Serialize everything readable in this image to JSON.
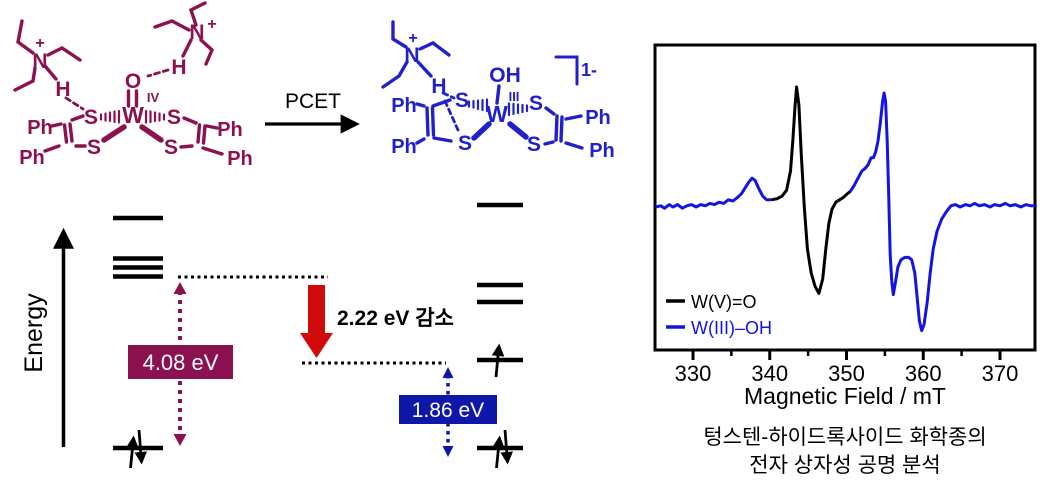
{
  "scheme": {
    "pcet_label": "PCET",
    "reactant": {
      "color": "#8C1150",
      "labels": {
        "n1": "N",
        "plus1": "+",
        "h1": "H",
        "n2": "N",
        "plus2": "+",
        "h2": "H",
        "o": "O",
        "w": "W",
        "ox_state": "IV",
        "s_tl": "S",
        "s_bl": "S",
        "s_tr": "S",
        "s_br": "S",
        "ph_lt": "Ph",
        "ph_lb": "Ph",
        "ph_rt": "Ph",
        "ph_rb": "Ph"
      }
    },
    "product": {
      "color": "#2121CC",
      "labels": {
        "n": "N",
        "plus": "+",
        "h": "H",
        "oh": "OH",
        "w": "W",
        "ox_state": "III",
        "s_lt": "S",
        "s_lb": "S",
        "s_rt": "S",
        "s_rb": "S",
        "ph_lt": "Ph",
        "ph_lb": "Ph",
        "ph_rt": "Ph",
        "ph_rb": "Ph",
        "charge": "1-"
      }
    }
  },
  "energy_diagram": {
    "axis_label": "Energy",
    "gap_left_label": "4.08 eV",
    "gap_right_label": "1.86 eV",
    "decrease_label": "2.22 eV 감소",
    "gap_left_color": "#8C1150",
    "gap_right_color": "#0F17A8",
    "arrow_color": "#D00A0A"
  },
  "chart_data": {
    "type": "line",
    "xlabel": "Magnetic Field / mT",
    "ylabel": "",
    "x_range": [
      325,
      375
    ],
    "x_ticks_major": [
      330,
      340,
      350,
      360,
      370
    ],
    "x_ticks_minor": [
      335,
      345,
      355,
      365
    ],
    "grid": false,
    "legend_position": "lower-left",
    "series": [
      {
        "name": "W(V)=O",
        "color": "#000000",
        "segments": [
          [
            [
              340.2,
              0.06
            ],
            [
              341.0,
              0.07
            ],
            [
              341.6,
              0.09
            ],
            [
              342.2,
              0.14
            ],
            [
              342.7,
              0.3
            ],
            [
              343.0,
              0.55
            ],
            [
              343.3,
              0.85
            ],
            [
              343.5,
              1.0
            ],
            [
              343.8,
              0.85
            ],
            [
              344.1,
              0.45
            ],
            [
              344.5,
              0.0
            ],
            [
              344.9,
              -0.35
            ],
            [
              345.4,
              -0.55
            ],
            [
              345.9,
              -0.66
            ],
            [
              346.4,
              -0.72
            ],
            [
              346.9,
              -0.6
            ],
            [
              347.3,
              -0.35
            ],
            [
              347.7,
              -0.14
            ],
            [
              348.1,
              -0.02
            ],
            [
              348.6,
              0.04
            ],
            [
              349.1,
              0.06
            ],
            [
              349.6,
              0.08
            ],
            [
              350.1,
              0.11
            ],
            [
              350.5,
              0.13
            ]
          ]
        ]
      },
      {
        "name": "W(III)–OH",
        "color": "#1414E0",
        "segments": [
          [
            [
              325.1,
              0.0
            ],
            [
              325.8,
              0.01
            ],
            [
              326.3,
              -0.01
            ],
            [
              326.9,
              0.02
            ],
            [
              327.4,
              0.0
            ],
            [
              328.0,
              0.02
            ],
            [
              328.6,
              -0.01
            ],
            [
              329.2,
              0.01
            ],
            [
              329.8,
              0.02
            ],
            [
              330.4,
              0.0
            ],
            [
              331.0,
              0.02
            ],
            [
              331.6,
              0.01
            ],
            [
              332.2,
              0.03
            ],
            [
              332.8,
              0.02
            ],
            [
              333.4,
              0.04
            ],
            [
              334.0,
              0.03
            ],
            [
              334.6,
              0.06
            ],
            [
              335.2,
              0.05
            ],
            [
              335.8,
              0.08
            ],
            [
              336.3,
              0.11
            ],
            [
              336.8,
              0.16
            ],
            [
              337.3,
              0.21
            ],
            [
              337.7,
              0.24
            ],
            [
              338.1,
              0.22
            ],
            [
              338.6,
              0.15
            ],
            [
              339.1,
              0.09
            ],
            [
              339.6,
              0.06
            ],
            [
              340.2,
              0.06
            ]
          ],
          [
            [
              350.5,
              0.13
            ],
            [
              351.0,
              0.18
            ],
            [
              351.5,
              0.24
            ],
            [
              352.0,
              0.3
            ],
            [
              352.4,
              0.32
            ],
            [
              352.8,
              0.35
            ],
            [
              353.2,
              0.41
            ],
            [
              353.5,
              0.41
            ],
            [
              353.8,
              0.46
            ],
            [
              354.1,
              0.55
            ],
            [
              354.4,
              0.7
            ],
            [
              354.7,
              0.88
            ],
            [
              354.9,
              0.95
            ],
            [
              355.1,
              0.88
            ],
            [
              355.3,
              0.55
            ],
            [
              355.5,
              0.1
            ],
            [
              355.7,
              -0.4
            ],
            [
              355.9,
              -0.62
            ],
            [
              356.1,
              -0.73
            ],
            [
              356.4,
              -0.62
            ],
            [
              356.7,
              -0.5
            ],
            [
              357.1,
              -0.44
            ],
            [
              357.6,
              -0.42
            ],
            [
              358.1,
              -0.42
            ],
            [
              358.5,
              -0.44
            ],
            [
              358.9,
              -0.55
            ],
            [
              359.2,
              -0.75
            ],
            [
              359.5,
              -0.95
            ],
            [
              359.8,
              -1.03
            ],
            [
              360.1,
              -0.98
            ],
            [
              360.5,
              -0.8
            ],
            [
              360.9,
              -0.55
            ],
            [
              361.3,
              -0.35
            ],
            [
              361.8,
              -0.2
            ],
            [
              362.4,
              -0.1
            ],
            [
              363.0,
              -0.04
            ],
            [
              363.6,
              0.01
            ],
            [
              364.2,
              0.02
            ],
            [
              364.8,
              0.0
            ],
            [
              365.5,
              0.02
            ],
            [
              366.1,
              0.01
            ],
            [
              366.7,
              0.03
            ],
            [
              367.3,
              0.01
            ],
            [
              368.0,
              0.02
            ],
            [
              368.7,
              0.0
            ],
            [
              369.3,
              0.02
            ],
            [
              370.0,
              0.01
            ],
            [
              370.7,
              0.03
            ],
            [
              371.3,
              0.01
            ],
            [
              372.0,
              0.02
            ],
            [
              372.7,
              0.0
            ],
            [
              373.4,
              0.02
            ],
            [
              374.0,
              0.01
            ],
            [
              374.8,
              0.01
            ]
          ]
        ]
      }
    ]
  },
  "caption": {
    "line1": "텅스텐-하이드록사이드 화학종의",
    "line2": "전자 상자성 공명 분석"
  }
}
